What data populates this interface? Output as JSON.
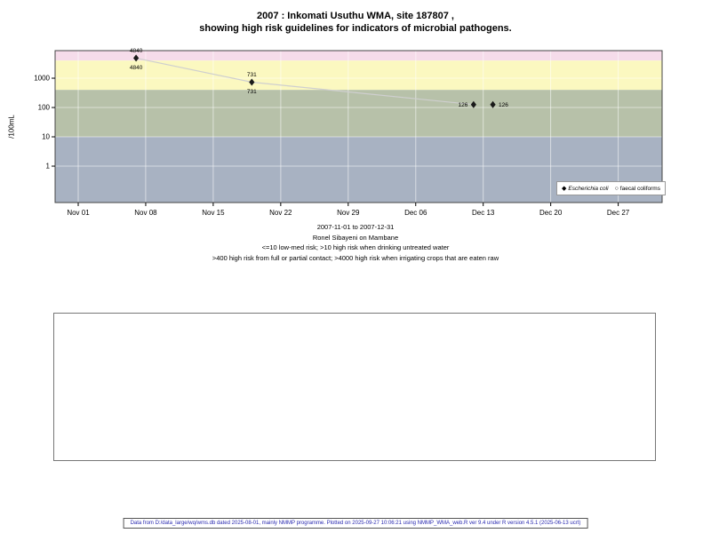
{
  "title": {
    "line1": "2007 : Inkomati Usuthu WMA, site 187807 ,",
    "line2": "showing high risk guidelines for indicators of microbial pathogens."
  },
  "chart_data": {
    "type": "line",
    "ylabel": "/100mL",
    "y_scale": "log",
    "y_ticks": [
      1000,
      100,
      10,
      1
    ],
    "x_tick_labels": [
      "Nov 01",
      "Nov 08",
      "Nov 15",
      "Nov 22",
      "Nov 29",
      "Dec 06",
      "Dec 13",
      "Dec 20",
      "Dec 27"
    ],
    "x_range_label": "2007-11-01 to 2007-12-31",
    "risk_bands": [
      {
        "from": 4000,
        "to": 100000,
        "color": "#f6dcea"
      },
      {
        "from": 400,
        "to": 4000,
        "color": "#fbf8c0"
      },
      {
        "from": 10,
        "to": 400,
        "color": "#b7c1a9"
      },
      {
        "from": 0.001,
        "to": 10,
        "color": "#a8b2c2"
      }
    ],
    "points": [
      {
        "day": 6,
        "value": 4840,
        "label": "4840",
        "label_pos": [
          "above",
          "below"
        ]
      },
      {
        "day": 18,
        "value": 731,
        "label": "731",
        "label_pos": [
          "above",
          "below"
        ]
      },
      {
        "day": 41,
        "value": 126,
        "label": "126",
        "label_pos": [
          "left"
        ]
      },
      {
        "day": 43,
        "value": 126,
        "label": "126",
        "label_pos": [
          "right"
        ]
      }
    ],
    "line_through": [
      0,
      1,
      2
    ],
    "line_color": "#cfcfcf",
    "marker_color": "#1a1a1a",
    "legend": [
      {
        "marker": "◆",
        "label": "Escherichia coli"
      },
      {
        "marker": "○",
        "label": "faecal coliforms"
      }
    ]
  },
  "caption": {
    "line1": "2007-11-01 to 2007-12-31",
    "line2": "Ronel Sibayeni on Mambane",
    "line3": "<=10 low-med risk; >10 high risk when drinking untreated water",
    "line4": ">400 high risk from full or partial contact; >4000 high risk when irrigating crops that are eaten raw"
  },
  "footer": "Data from D:/data_large/wq/wms.db dated 2025-08-01, mainly NMMP programme. Plotted on 2025-09-27 10:06:21 using NMMP_WMA_web.R ver 9.4 under R version 4.5.1 (2025-06-13 ucrt)"
}
